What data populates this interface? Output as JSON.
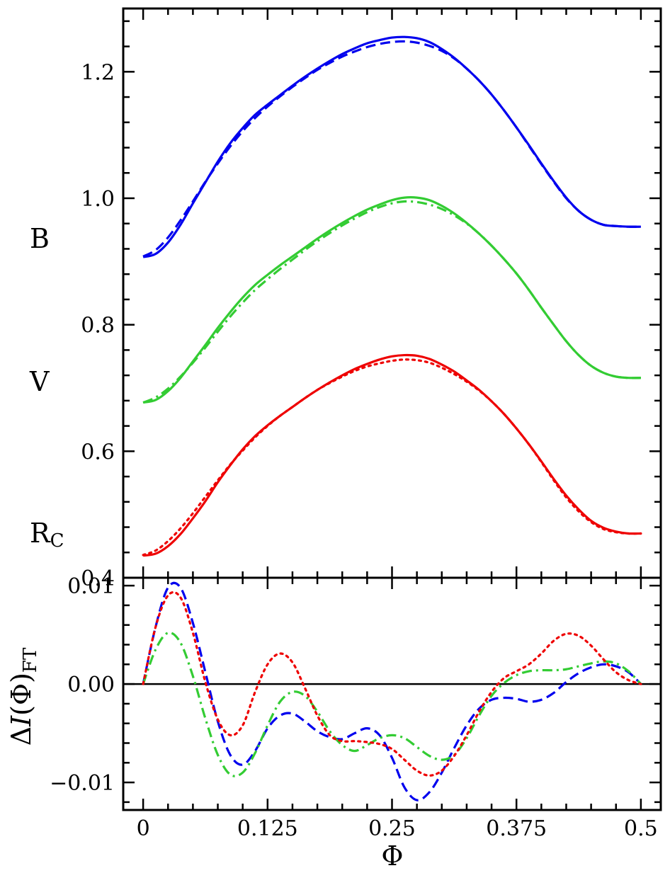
{
  "chart_data": [
    {
      "type": "line",
      "panel": "top",
      "xlim": [
        -0.02,
        0.52
      ],
      "ylim": [
        0.4,
        1.3
      ],
      "xticks": [
        0,
        0.125,
        0.25,
        0.375,
        0.5
      ],
      "yticks": [
        0.4,
        0.6,
        0.8,
        1.0,
        1.2
      ],
      "yticklabels": [
        "0.4",
        "0.6",
        "0.8",
        "1.0",
        "1.2"
      ],
      "grid": false,
      "band_labels": [
        {
          "key": "B",
          "text": "B",
          "sub": ""
        },
        {
          "key": "V",
          "text": "V",
          "sub": ""
        },
        {
          "key": "R",
          "text": "R",
          "sub": "C"
        }
      ],
      "series": [
        {
          "band": "B",
          "style": "solid",
          "color": "#0000ee",
          "x": [
            0,
            0.0125,
            0.025,
            0.0375,
            0.05,
            0.0625,
            0.075,
            0.0875,
            0.1,
            0.1125,
            0.125,
            0.1375,
            0.15,
            0.1625,
            0.175,
            0.1875,
            0.2,
            0.2125,
            0.225,
            0.2375,
            0.25,
            0.2625,
            0.275,
            0.2875,
            0.3,
            0.3125,
            0.325,
            0.3375,
            0.35,
            0.3625,
            0.375,
            0.3875,
            0.4,
            0.4125,
            0.425,
            0.4375,
            0.45,
            0.4625,
            0.475,
            0.4875,
            0.5
          ],
          "y": [
            0.907,
            0.912,
            0.93,
            0.958,
            0.992,
            1.025,
            1.058,
            1.087,
            1.111,
            1.132,
            1.148,
            1.163,
            1.178,
            1.192,
            1.205,
            1.217,
            1.228,
            1.237,
            1.245,
            1.25,
            1.254,
            1.255,
            1.253,
            1.247,
            1.236,
            1.222,
            1.205,
            1.186,
            1.164,
            1.139,
            1.112,
            1.084,
            1.055,
            1.027,
            1.001,
            0.98,
            0.966,
            0.958,
            0.956,
            0.955,
            0.955
          ]
        },
        {
          "band": "B",
          "style": "dashed",
          "color": "#0000ee",
          "x": [
            0,
            0.0125,
            0.025,
            0.0375,
            0.05,
            0.0625,
            0.075,
            0.0875,
            0.1,
            0.1125,
            0.125,
            0.1375,
            0.15,
            0.1625,
            0.175,
            0.1875,
            0.2,
            0.2125,
            0.225,
            0.2375,
            0.25,
            0.2625,
            0.275,
            0.2875,
            0.3,
            0.3125,
            0.325,
            0.3375,
            0.35,
            0.3625,
            0.375,
            0.3875,
            0.4,
            0.4125,
            0.425,
            0.4375,
            0.45,
            0.4625,
            0.475,
            0.4875,
            0.5
          ],
          "y": [
            0.908,
            0.918,
            0.938,
            0.965,
            0.995,
            1.026,
            1.055,
            1.082,
            1.106,
            1.127,
            1.145,
            1.161,
            1.176,
            1.19,
            1.203,
            1.214,
            1.224,
            1.232,
            1.239,
            1.244,
            1.247,
            1.248,
            1.246,
            1.241,
            1.233,
            1.221,
            1.205,
            1.186,
            1.164,
            1.139,
            1.112,
            1.083,
            1.054,
            1.026,
            1.0,
            0.98,
            0.966,
            0.958,
            0.956,
            0.955,
            0.955
          ]
        },
        {
          "band": "V",
          "style": "solid",
          "color": "#33cc33",
          "x": [
            0,
            0.0125,
            0.025,
            0.0375,
            0.05,
            0.0625,
            0.075,
            0.0875,
            0.1,
            0.1125,
            0.125,
            0.1375,
            0.15,
            0.1625,
            0.175,
            0.1875,
            0.2,
            0.2125,
            0.225,
            0.2375,
            0.25,
            0.2625,
            0.275,
            0.2875,
            0.3,
            0.3125,
            0.325,
            0.3375,
            0.35,
            0.3625,
            0.375,
            0.3875,
            0.4,
            0.4125,
            0.425,
            0.4375,
            0.45,
            0.4625,
            0.475,
            0.4875,
            0.5
          ],
          "y": [
            0.677,
            0.681,
            0.695,
            0.716,
            0.742,
            0.768,
            0.795,
            0.82,
            0.843,
            0.863,
            0.879,
            0.894,
            0.908,
            0.922,
            0.936,
            0.949,
            0.961,
            0.972,
            0.982,
            0.99,
            0.997,
            1.001,
            1.001,
            0.997,
            0.988,
            0.976,
            0.961,
            0.944,
            0.925,
            0.904,
            0.881,
            0.855,
            0.827,
            0.8,
            0.774,
            0.752,
            0.735,
            0.724,
            0.718,
            0.716,
            0.716
          ]
        },
        {
          "band": "V",
          "style": "dashdot",
          "color": "#33cc33",
          "x": [
            0,
            0.0125,
            0.025,
            0.0375,
            0.05,
            0.0625,
            0.075,
            0.0875,
            0.1,
            0.1125,
            0.125,
            0.1375,
            0.15,
            0.1625,
            0.175,
            0.1875,
            0.2,
            0.2125,
            0.225,
            0.2375,
            0.25,
            0.2625,
            0.275,
            0.2875,
            0.3,
            0.3125,
            0.325,
            0.3375,
            0.35,
            0.3625,
            0.375,
            0.3875,
            0.4,
            0.4125,
            0.425,
            0.4375,
            0.45,
            0.4625,
            0.475,
            0.4875,
            0.5
          ],
          "y": [
            0.677,
            0.685,
            0.699,
            0.718,
            0.74,
            0.764,
            0.789,
            0.813,
            0.835,
            0.855,
            0.872,
            0.888,
            0.903,
            0.918,
            0.932,
            0.945,
            0.957,
            0.968,
            0.978,
            0.986,
            0.992,
            0.995,
            0.994,
            0.99,
            0.983,
            0.973,
            0.96,
            0.944,
            0.925,
            0.904,
            0.881,
            0.855,
            0.827,
            0.8,
            0.774,
            0.752,
            0.735,
            0.724,
            0.718,
            0.716,
            0.716
          ]
        },
        {
          "band": "R",
          "style": "solid",
          "color": "#ee0000",
          "x": [
            0,
            0.0125,
            0.025,
            0.0375,
            0.05,
            0.0625,
            0.075,
            0.0875,
            0.1,
            0.1125,
            0.125,
            0.1375,
            0.15,
            0.1625,
            0.175,
            0.1875,
            0.2,
            0.2125,
            0.225,
            0.2375,
            0.25,
            0.2625,
            0.275,
            0.2875,
            0.3,
            0.3125,
            0.325,
            0.3375,
            0.35,
            0.3625,
            0.375,
            0.3875,
            0.4,
            0.4125,
            0.425,
            0.4375,
            0.45,
            0.4625,
            0.475,
            0.4875,
            0.5
          ],
          "y": [
            0.435,
            0.438,
            0.45,
            0.469,
            0.494,
            0.521,
            0.551,
            0.578,
            0.603,
            0.624,
            0.641,
            0.656,
            0.67,
            0.684,
            0.697,
            0.709,
            0.72,
            0.73,
            0.738,
            0.745,
            0.75,
            0.752,
            0.751,
            0.746,
            0.737,
            0.726,
            0.712,
            0.697,
            0.679,
            0.659,
            0.636,
            0.611,
            0.584,
            0.556,
            0.53,
            0.508,
            0.49,
            0.479,
            0.473,
            0.47,
            0.47
          ]
        },
        {
          "band": "R",
          "style": "dotted",
          "color": "#ee0000",
          "x": [
            0,
            0.0125,
            0.025,
            0.0375,
            0.05,
            0.0625,
            0.075,
            0.0875,
            0.1,
            0.1125,
            0.125,
            0.1375,
            0.15,
            0.1625,
            0.175,
            0.1875,
            0.2,
            0.2125,
            0.225,
            0.2375,
            0.25,
            0.2625,
            0.275,
            0.2875,
            0.3,
            0.3125,
            0.325,
            0.3375,
            0.35,
            0.3625,
            0.375,
            0.3875,
            0.4,
            0.4125,
            0.425,
            0.4375,
            0.45,
            0.4625,
            0.475,
            0.4875,
            0.5
          ],
          "y": [
            0.436,
            0.443,
            0.458,
            0.478,
            0.502,
            0.528,
            0.554,
            0.579,
            0.601,
            0.622,
            0.64,
            0.656,
            0.67,
            0.684,
            0.697,
            0.708,
            0.718,
            0.727,
            0.734,
            0.739,
            0.743,
            0.745,
            0.744,
            0.74,
            0.732,
            0.722,
            0.71,
            0.696,
            0.679,
            0.659,
            0.636,
            0.611,
            0.583,
            0.554,
            0.527,
            0.505,
            0.488,
            0.477,
            0.472,
            0.47,
            0.47
          ]
        }
      ]
    },
    {
      "type": "line",
      "panel": "bottom",
      "xlim": [
        -0.02,
        0.52
      ],
      "ylim": [
        -0.0128,
        0.0108
      ],
      "xticks": [
        0,
        0.125,
        0.25,
        0.375,
        0.5
      ],
      "xticklabels": [
        "0",
        "0.125",
        "0.25",
        "0.375",
        "0.5"
      ],
      "yticks": [
        0.01,
        0.0,
        -0.01
      ],
      "yticklabels": [
        "0.01",
        "0.00",
        "−0.01"
      ],
      "xlabel": "Φ",
      "ylabel": {
        "prefix": "Δ",
        "italic": "I",
        "suffix": "(Φ)",
        "sub": "FT"
      },
      "reference_line": 0,
      "grid": false,
      "series": [
        {
          "band": "B",
          "style": "dashed",
          "color": "#0000ee",
          "x": [
            0,
            0.0125,
            0.025,
            0.0375,
            0.05,
            0.0625,
            0.075,
            0.0875,
            0.1,
            0.1125,
            0.125,
            0.1375,
            0.15,
            0.1625,
            0.175,
            0.1875,
            0.2,
            0.2125,
            0.225,
            0.2375,
            0.25,
            0.2625,
            0.275,
            0.2875,
            0.3,
            0.3125,
            0.325,
            0.3375,
            0.35,
            0.3625,
            0.375,
            0.3875,
            0.4,
            0.4125,
            0.425,
            0.4375,
            0.45,
            0.4625,
            0.475,
            0.4875,
            0.5
          ],
          "y": [
            0.0,
            0.0058,
            0.0098,
            0.0098,
            0.0062,
            0.0012,
            -0.0038,
            -0.0072,
            -0.0082,
            -0.0068,
            -0.0045,
            -0.0032,
            -0.003,
            -0.0038,
            -0.0048,
            -0.0054,
            -0.0056,
            -0.005,
            -0.0045,
            -0.0052,
            -0.0075,
            -0.0105,
            -0.0118,
            -0.011,
            -0.009,
            -0.0065,
            -0.0042,
            -0.0025,
            -0.0016,
            -0.0014,
            -0.0015,
            -0.0018,
            -0.0016,
            -0.0009,
            0.0002,
            0.0011,
            0.0017,
            0.002,
            0.0018,
            0.0012,
            0.0
          ]
        },
        {
          "band": "V",
          "style": "dashdot",
          "color": "#33cc33",
          "x": [
            0,
            0.0125,
            0.025,
            0.0375,
            0.05,
            0.0625,
            0.075,
            0.0875,
            0.1,
            0.1125,
            0.125,
            0.1375,
            0.15,
            0.1625,
            0.175,
            0.1875,
            0.2,
            0.2125,
            0.225,
            0.2375,
            0.25,
            0.2625,
            0.275,
            0.2875,
            0.3,
            0.3125,
            0.325,
            0.3375,
            0.35,
            0.3625,
            0.375,
            0.3875,
            0.4,
            0.4125,
            0.425,
            0.4375,
            0.45,
            0.4625,
            0.475,
            0.4875,
            0.5
          ],
          "y": [
            0.0,
            0.0035,
            0.0052,
            0.0042,
            0.0008,
            -0.0035,
            -0.0072,
            -0.0092,
            -0.009,
            -0.007,
            -0.0042,
            -0.0018,
            -0.0008,
            -0.0012,
            -0.0028,
            -0.0048,
            -0.0062,
            -0.0068,
            -0.0062,
            -0.0055,
            -0.0052,
            -0.0055,
            -0.0064,
            -0.0073,
            -0.0077,
            -0.0072,
            -0.0055,
            -0.0032,
            -0.0012,
            0.0001,
            0.0009,
            0.0013,
            0.0014,
            0.0014,
            0.0015,
            0.0018,
            0.0021,
            0.0023,
            0.0021,
            0.0013,
            0.0
          ]
        },
        {
          "band": "R",
          "style": "dotted",
          "color": "#ee0000",
          "x": [
            0,
            0.0125,
            0.025,
            0.0375,
            0.05,
            0.0625,
            0.075,
            0.0875,
            0.1,
            0.1125,
            0.125,
            0.1375,
            0.15,
            0.1625,
            0.175,
            0.1875,
            0.2,
            0.2125,
            0.225,
            0.2375,
            0.25,
            0.2625,
            0.275,
            0.2875,
            0.3,
            0.3125,
            0.325,
            0.3375,
            0.35,
            0.3625,
            0.375,
            0.3875,
            0.4,
            0.4125,
            0.425,
            0.4375,
            0.45,
            0.4625,
            0.475,
            0.4875,
            0.5
          ],
          "y": [
            0.0,
            0.0058,
            0.009,
            0.0088,
            0.0052,
            0.0002,
            -0.0036,
            -0.0052,
            -0.0042,
            -0.0008,
            0.002,
            0.0031,
            0.0022,
            -0.0004,
            -0.0032,
            -0.0052,
            -0.0058,
            -0.0058,
            -0.0059,
            -0.0061,
            -0.0066,
            -0.0077,
            -0.0088,
            -0.0093,
            -0.0088,
            -0.0073,
            -0.0052,
            -0.0028,
            -0.0008,
            0.0006,
            0.0013,
            0.002,
            0.0031,
            0.0044,
            0.0051,
            0.0049,
            0.0039,
            0.0025,
            0.0012,
            0.0004,
            0.0
          ]
        }
      ]
    }
  ]
}
